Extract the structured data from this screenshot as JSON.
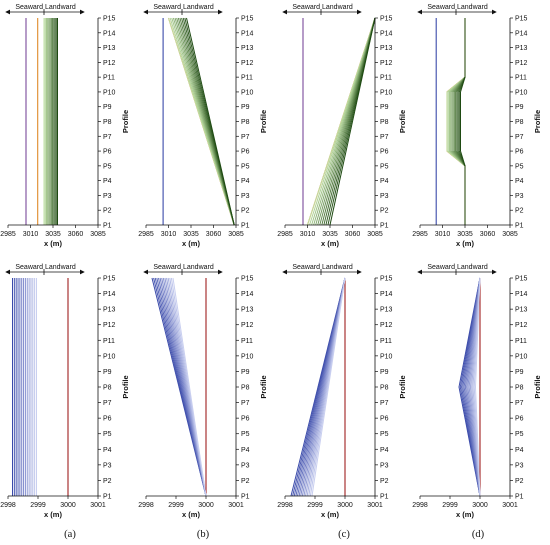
{
  "direction": {
    "seaward": "Seaward",
    "landward": "Landward"
  },
  "profile_axis_label": "Profile",
  "x_axis_label": "x (m)",
  "profiles": [
    "P1",
    "P2",
    "P3",
    "P4",
    "P5",
    "P6",
    "P7",
    "P8",
    "P9",
    "P10",
    "P11",
    "P12",
    "P13",
    "P14",
    "P15"
  ],
  "panel_labels": [
    "(a)",
    "(b)",
    "(c)",
    "(d)"
  ],
  "colors": {
    "initial_line": "#7a4a9a",
    "orange_line": "#e08a2a",
    "green_dark": "#1e4a12",
    "green_light": "#bfe0a5",
    "blue_dark": "#3a4aaa",
    "blue_light": "#c9cff0",
    "red_line": "#a02020"
  },
  "chart_data": [
    {
      "type": "line",
      "row": 0,
      "col": 0,
      "xticks": [
        "2985",
        "3010",
        "3035",
        "3060",
        "3085"
      ],
      "xlim": [
        2985,
        3085
      ],
      "ylim": [
        1,
        15
      ],
      "series": [
        {
          "style": "purple",
          "x": [
            3005,
            3005
          ],
          "y": [
            1,
            15
          ]
        },
        {
          "style": "orange",
          "x": [
            3018,
            3018
          ],
          "y": [
            1,
            15
          ]
        },
        {
          "style": "green-band",
          "x_start": [
            3025,
            3025
          ],
          "x_end": [
            3040,
            3040
          ],
          "y": [
            1,
            15
          ]
        }
      ]
    },
    {
      "type": "line",
      "row": 0,
      "col": 1,
      "xticks": [
        "2985",
        "3010",
        "3035",
        "3060",
        "3085"
      ],
      "xlim": [
        2985,
        3085
      ],
      "ylim": [
        1,
        15
      ],
      "series": [
        {
          "style": "blue",
          "x": [
            3004,
            3004
          ],
          "y": [
            1,
            15
          ]
        },
        {
          "style": "orange",
          "x": [
            3083,
            3010
          ],
          "y": [
            1,
            15
          ]
        },
        {
          "style": "green-band",
          "x_start": [
            3083,
            3010
          ],
          "x_end": [
            3083,
            3030
          ],
          "y": [
            1,
            15
          ]
        }
      ]
    },
    {
      "type": "line",
      "row": 0,
      "col": 2,
      "xticks": [
        "2985",
        "3010",
        "3035",
        "3060",
        "3085"
      ],
      "xlim": [
        2985,
        3085
      ],
      "ylim": [
        1,
        15
      ],
      "series": [
        {
          "style": "purple",
          "x": [
            3005,
            3005
          ],
          "y": [
            1,
            15
          ]
        },
        {
          "style": "orange",
          "x": [
            3010,
            3085
          ],
          "y": [
            1,
            15
          ]
        },
        {
          "style": "green-band",
          "x_start": [
            3010,
            3085
          ],
          "x_end": [
            3035,
            3085
          ],
          "y": [
            1,
            15
          ]
        }
      ]
    },
    {
      "type": "line",
      "row": 0,
      "col": 3,
      "xticks": [
        "2985",
        "3010",
        "3035",
        "3060",
        "3085"
      ],
      "xlim": [
        2985,
        3085
      ],
      "ylim": [
        1,
        15
      ],
      "series": [
        {
          "style": "blue",
          "x": [
            3003,
            3003
          ],
          "y": [
            1,
            15
          ]
        },
        {
          "style": "orange",
          "x": [
            3035,
            3035,
            3015,
            3015,
            3035,
            3035
          ],
          "y": [
            1,
            5,
            6,
            10,
            11,
            15
          ]
        },
        {
          "style": "green-band",
          "x_start": [
            3035,
            3035,
            3015,
            3015,
            3035,
            3035
          ],
          "x_end": [
            3035,
            3035,
            3030,
            3030,
            3035,
            3035
          ],
          "y": [
            1,
            5,
            6,
            10,
            11,
            15
          ]
        }
      ]
    },
    {
      "type": "line",
      "row": 1,
      "col": 0,
      "xticks": [
        "2998",
        "2999",
        "3000",
        "3001"
      ],
      "xlim": [
        2998,
        3001
      ],
      "ylim": [
        1,
        15
      ],
      "series": [
        {
          "style": "red",
          "x": [
            3000,
            3000
          ],
          "y": [
            1,
            15
          ]
        },
        {
          "style": "blue-fan",
          "x_start": [
            2998.15,
            2998.15
          ],
          "x_end": [
            2998.95,
            2998.95
          ],
          "y": [
            1,
            15
          ]
        }
      ]
    },
    {
      "type": "line",
      "row": 1,
      "col": 1,
      "xticks": [
        "2998",
        "2999",
        "3000",
        "3001"
      ],
      "xlim": [
        2998,
        3001
      ],
      "ylim": [
        1,
        15
      ],
      "series": [
        {
          "style": "red",
          "x": [
            3000,
            3000
          ],
          "y": [
            1,
            15
          ]
        },
        {
          "style": "blue-fan",
          "x_start": [
            3000,
            2998.2
          ],
          "x_end": [
            3000,
            2998.9
          ],
          "y": [
            1,
            15
          ]
        }
      ]
    },
    {
      "type": "line",
      "row": 1,
      "col": 2,
      "xticks": [
        "2998",
        "2999",
        "3000",
        "3001"
      ],
      "xlim": [
        2998,
        3001
      ],
      "ylim": [
        1,
        15
      ],
      "series": [
        {
          "style": "red",
          "x": [
            3000,
            3000
          ],
          "y": [
            1,
            15
          ]
        },
        {
          "style": "blue-fan",
          "x_start": [
            2998.2,
            3000
          ],
          "x_end": [
            2998.9,
            3000
          ],
          "y": [
            1,
            15
          ]
        }
      ]
    },
    {
      "type": "line",
      "row": 1,
      "col": 3,
      "xticks": [
        "2998",
        "2999",
        "3000",
        "3001"
      ],
      "xlim": [
        2998,
        3001
      ],
      "ylim": [
        1,
        15
      ],
      "series": [
        {
          "style": "red",
          "x": [
            3000,
            3000
          ],
          "y": [
            1,
            15
          ]
        },
        {
          "style": "blue-fan",
          "x_start": [
            3000,
            2999.3,
            3000
          ],
          "x_end": [
            3000,
            2999.85,
            3000
          ],
          "y": [
            1,
            8,
            15
          ]
        }
      ]
    }
  ]
}
